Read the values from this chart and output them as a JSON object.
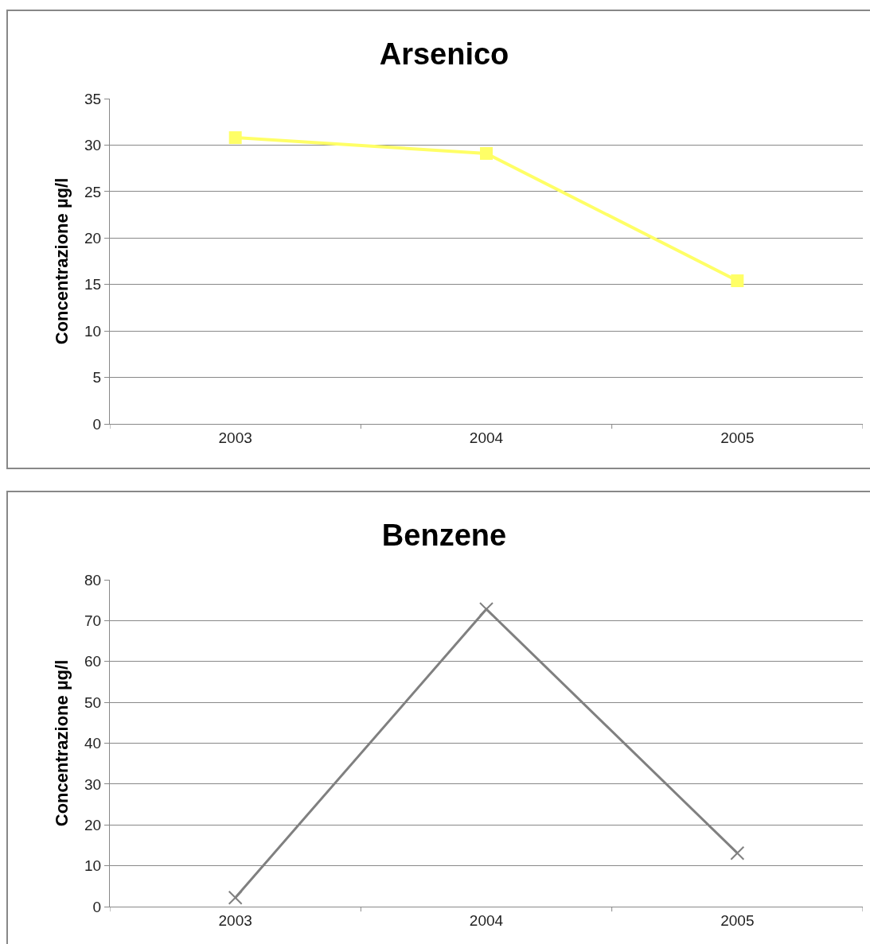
{
  "chart_data": [
    {
      "type": "line",
      "title": "Arsenico",
      "ylabel": "Concentrazione µg/l",
      "categories": [
        "2003",
        "2004",
        "2005"
      ],
      "series": [
        {
          "color": "#ffff66",
          "values": [
            30.8,
            29.1,
            15.4
          ]
        }
      ],
      "ylim": [
        0,
        35
      ],
      "yticks": [
        0,
        5,
        10,
        15,
        20,
        25,
        30,
        35
      ],
      "grid": "y",
      "marker": "square",
      "line_style": "solid"
    },
    {
      "type": "line",
      "title": "Benzene",
      "ylabel": "Concentrazione µg/l",
      "categories": [
        "2003",
        "2004",
        "2005"
      ],
      "series": [
        {
          "color": "#808080",
          "values": [
            2.2,
            72.8,
            13.1
          ]
        }
      ],
      "ylim": [
        0,
        80
      ],
      "yticks": [
        0,
        10,
        20,
        30,
        40,
        50,
        60,
        70,
        80
      ],
      "grid": "y",
      "marker": "cross",
      "line_style": "solid"
    }
  ]
}
